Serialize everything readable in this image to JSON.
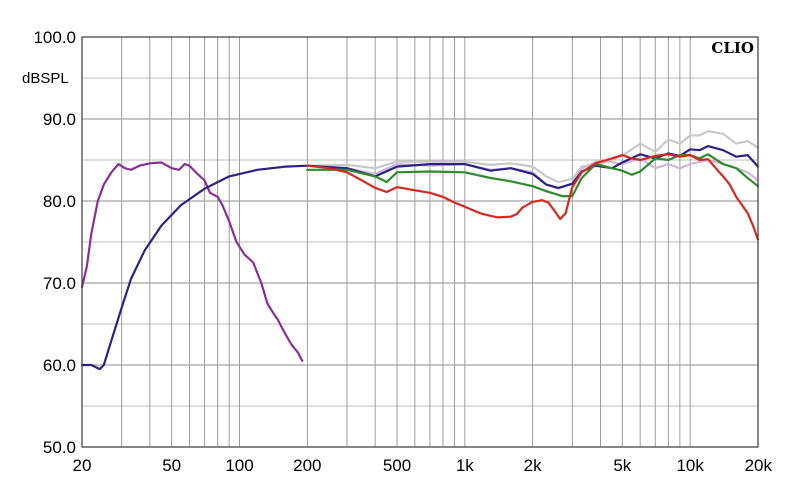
{
  "chart_data": {
    "type": "line",
    "brand": "CLIO",
    "ylabel": "dBSPL",
    "xscale": "log",
    "xlim": [
      20,
      20000
    ],
    "ylim": [
      50,
      100
    ],
    "grid": true,
    "y_ticks": [
      {
        "value": 100,
        "label": "100.0"
      },
      {
        "value": 90,
        "label": "90.0"
      },
      {
        "value": 80,
        "label": "80.0"
      },
      {
        "value": 70,
        "label": "70.0"
      },
      {
        "value": 60,
        "label": "60.0"
      },
      {
        "value": 50,
        "label": "50.0"
      }
    ],
    "x_ticks": [
      {
        "value": 20,
        "label": "20"
      },
      {
        "value": 50,
        "label": "50"
      },
      {
        "value": 100,
        "label": "100"
      },
      {
        "value": 200,
        "label": "200"
      },
      {
        "value": 500,
        "label": "500"
      },
      {
        "value": 1000,
        "label": "1k"
      },
      {
        "value": 2000,
        "label": "2k"
      },
      {
        "value": 5000,
        "label": "5k"
      },
      {
        "value": 10000,
        "label": "10k"
      },
      {
        "value": 20000,
        "label": "20k"
      }
    ],
    "series": [
      {
        "color": "#8a2f95",
        "points": [
          [
            20,
            69.5
          ],
          [
            21,
            72
          ],
          [
            22,
            76
          ],
          [
            23.5,
            80
          ],
          [
            25,
            82
          ],
          [
            27,
            83.5
          ],
          [
            29,
            84.5
          ],
          [
            31,
            84
          ],
          [
            33,
            83.8
          ],
          [
            36,
            84.3
          ],
          [
            40,
            84.6
          ],
          [
            45,
            84.7
          ],
          [
            50,
            84
          ],
          [
            54,
            83.8
          ],
          [
            57,
            84.5
          ],
          [
            60,
            84.3
          ],
          [
            64,
            83.5
          ],
          [
            70,
            82.5
          ],
          [
            74,
            81
          ],
          [
            80,
            80.5
          ],
          [
            84,
            79.5
          ],
          [
            90,
            77.5
          ],
          [
            97,
            75
          ],
          [
            105,
            73.5
          ],
          [
            115,
            72.5
          ],
          [
            125,
            70
          ],
          [
            133,
            67.5
          ],
          [
            140,
            66.5
          ],
          [
            148,
            65.5
          ],
          [
            158,
            64
          ],
          [
            170,
            62.5
          ],
          [
            182,
            61.5
          ],
          [
            190,
            60.5
          ]
        ]
      },
      {
        "color": "#d4b4d8",
        "points": [
          [
            200,
            84.3
          ],
          [
            300,
            84
          ],
          [
            400,
            83.3
          ],
          [
            500,
            84.5
          ],
          [
            700,
            84.3
          ],
          [
            1000,
            84.5
          ],
          [
            1300,
            83.8
          ],
          [
            1600,
            84
          ],
          [
            2000,
            83.5
          ],
          [
            2300,
            82
          ],
          [
            2600,
            81.5
          ],
          [
            3000,
            82.2
          ],
          [
            3300,
            84
          ],
          [
            4000,
            85
          ],
          [
            5000,
            84.5
          ],
          [
            6000,
            85.2
          ],
          [
            7000,
            84
          ],
          [
            8000,
            84.5
          ],
          [
            9000,
            84
          ],
          [
            10000,
            84.5
          ],
          [
            12000,
            85
          ],
          [
            14000,
            84.5
          ],
          [
            16000,
            84
          ],
          [
            18000,
            83.5
          ],
          [
            20000,
            82.5
          ]
        ]
      },
      {
        "color": "#c8c8c8",
        "points": [
          [
            200,
            84.3
          ],
          [
            300,
            84.4
          ],
          [
            400,
            84
          ],
          [
            500,
            84.8
          ],
          [
            700,
            84.8
          ],
          [
            1000,
            84.8
          ],
          [
            1300,
            84.4
          ],
          [
            1600,
            84.6
          ],
          [
            2000,
            84.2
          ],
          [
            2300,
            83
          ],
          [
            2600,
            82.3
          ],
          [
            3000,
            82.7
          ],
          [
            3300,
            84.2
          ],
          [
            4000,
            84.5
          ],
          [
            5000,
            85.5
          ],
          [
            6000,
            87
          ],
          [
            7000,
            86
          ],
          [
            8000,
            87.5
          ],
          [
            9000,
            87
          ],
          [
            10000,
            88
          ],
          [
            11000,
            88
          ],
          [
            12000,
            88.5
          ],
          [
            14000,
            88.2
          ],
          [
            16000,
            87
          ],
          [
            18000,
            87.3
          ],
          [
            20000,
            86.5
          ]
        ]
      },
      {
        "color": "#2b2285",
        "points": [
          [
            20,
            60
          ],
          [
            22,
            60
          ],
          [
            24,
            59.5
          ],
          [
            25,
            60
          ],
          [
            27,
            63
          ],
          [
            30,
            67
          ],
          [
            33,
            70.5
          ],
          [
            38,
            74
          ],
          [
            45,
            77
          ],
          [
            55,
            79.5
          ],
          [
            70,
            81.5
          ],
          [
            90,
            83
          ],
          [
            120,
            83.8
          ],
          [
            160,
            84.2
          ],
          [
            200,
            84.3
          ],
          [
            300,
            84
          ],
          [
            400,
            83
          ],
          [
            500,
            84.2
          ],
          [
            700,
            84.5
          ],
          [
            1000,
            84.5
          ],
          [
            1300,
            83.7
          ],
          [
            1600,
            84
          ],
          [
            2000,
            83.3
          ],
          [
            2300,
            82
          ],
          [
            2600,
            81.6
          ],
          [
            3000,
            82.1
          ],
          [
            3300,
            83.6
          ],
          [
            3800,
            84.3
          ],
          [
            4500,
            84
          ],
          [
            5000,
            84.7
          ],
          [
            6000,
            85.7
          ],
          [
            7000,
            85.2
          ],
          [
            8000,
            85.8
          ],
          [
            9000,
            85.5
          ],
          [
            10000,
            86.3
          ],
          [
            11000,
            86.2
          ],
          [
            12000,
            86.7
          ],
          [
            14000,
            86.2
          ],
          [
            16000,
            85.4
          ],
          [
            18000,
            85.6
          ],
          [
            20000,
            84.2
          ]
        ]
      },
      {
        "color": "#2e8b2e",
        "points": [
          [
            200,
            83.8
          ],
          [
            300,
            83.8
          ],
          [
            400,
            83
          ],
          [
            450,
            82.3
          ],
          [
            500,
            83.5
          ],
          [
            700,
            83.6
          ],
          [
            1000,
            83.5
          ],
          [
            1300,
            82.8
          ],
          [
            1600,
            82.4
          ],
          [
            2000,
            81.8
          ],
          [
            2300,
            81.2
          ],
          [
            2700,
            80.6
          ],
          [
            3000,
            80.6
          ],
          [
            3300,
            82.8
          ],
          [
            3800,
            84.5
          ],
          [
            4500,
            84
          ],
          [
            5000,
            83.7
          ],
          [
            5500,
            83.2
          ],
          [
            6000,
            83.6
          ],
          [
            7000,
            85.2
          ],
          [
            8000,
            85
          ],
          [
            9000,
            85.6
          ],
          [
            10000,
            85.6
          ],
          [
            11000,
            85.2
          ],
          [
            12000,
            85.7
          ],
          [
            14000,
            84.5
          ],
          [
            16000,
            84
          ],
          [
            18000,
            82.8
          ],
          [
            20000,
            81.8
          ]
        ]
      },
      {
        "color": "#d8281e",
        "points": [
          [
            200,
            84.3
          ],
          [
            250,
            84
          ],
          [
            300,
            83.5
          ],
          [
            350,
            82.5
          ],
          [
            400,
            81.6
          ],
          [
            450,
            81.1
          ],
          [
            500,
            81.7
          ],
          [
            600,
            81.3
          ],
          [
            700,
            81
          ],
          [
            800,
            80.5
          ],
          [
            900,
            79.8
          ],
          [
            1000,
            79.3
          ],
          [
            1100,
            78.8
          ],
          [
            1200,
            78.4
          ],
          [
            1400,
            78
          ],
          [
            1600,
            78.1
          ],
          [
            1700,
            78.4
          ],
          [
            1800,
            79.2
          ],
          [
            2000,
            79.9
          ],
          [
            2200,
            80.1
          ],
          [
            2350,
            79.8
          ],
          [
            2500,
            78.8
          ],
          [
            2650,
            77.8
          ],
          [
            2800,
            78.5
          ],
          [
            3000,
            81.7
          ],
          [
            3300,
            83.5
          ],
          [
            3800,
            84.6
          ],
          [
            4500,
            85.2
          ],
          [
            5000,
            85.6
          ],
          [
            5500,
            85.2
          ],
          [
            6000,
            85
          ],
          [
            7000,
            85.5
          ],
          [
            8000,
            85.7
          ],
          [
            9000,
            85.4
          ],
          [
            10000,
            85.6
          ],
          [
            11000,
            85
          ],
          [
            12000,
            85.1
          ],
          [
            13000,
            84
          ],
          [
            14000,
            83
          ],
          [
            15000,
            82
          ],
          [
            16000,
            80.5
          ],
          [
            17000,
            79.5
          ],
          [
            18000,
            78.5
          ],
          [
            19000,
            77
          ],
          [
            20000,
            75.3
          ]
        ]
      }
    ]
  }
}
